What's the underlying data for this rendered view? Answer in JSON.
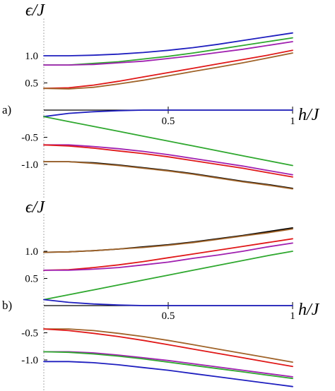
{
  "chart_data": [
    {
      "type": "line",
      "panel_label": "a)",
      "ylabel": "ϵ/J",
      "xlabel": "h/J",
      "xlim": [
        0,
        1
      ],
      "ylim": [
        -1.55,
        1.55
      ],
      "x_ticks": [
        "0.5",
        "1"
      ],
      "y_ticks": [
        "1.0",
        "0.5",
        "-0.5",
        "-1.0"
      ],
      "x": [
        0,
        0.1,
        0.2,
        0.3,
        0.4,
        0.5,
        0.6,
        0.7,
        0.8,
        0.9,
        1.0
      ],
      "series": [
        {
          "color": "#1f1fbf",
          "values": [
            1.0,
            1.0,
            1.01,
            1.03,
            1.06,
            1.1,
            1.15,
            1.21,
            1.28,
            1.35,
            1.42
          ]
        },
        {
          "color": "#2fa82f",
          "values": [
            0.83,
            0.83,
            0.86,
            0.89,
            0.94,
            0.99,
            1.05,
            1.12,
            1.19,
            1.26,
            1.33
          ]
        },
        {
          "color": "#a020b0",
          "values": [
            0.83,
            0.83,
            0.84,
            0.87,
            0.9,
            0.95,
            1.0,
            1.06,
            1.12,
            1.19,
            1.26
          ]
        },
        {
          "color": "#e01818",
          "values": [
            0.4,
            0.41,
            0.46,
            0.53,
            0.61,
            0.69,
            0.77,
            0.85,
            0.93,
            1.01,
            1.1
          ]
        },
        {
          "color": "#a0642a",
          "values": [
            0.4,
            0.39,
            0.42,
            0.48,
            0.55,
            0.63,
            0.71,
            0.79,
            0.87,
            0.96,
            1.05
          ]
        },
        {
          "color": "#1f1fbf",
          "values": [
            -0.12,
            -0.06,
            -0.03,
            -0.01,
            0.0,
            0.0,
            0.0,
            0.0,
            0.0,
            0.0,
            0.0
          ]
        },
        {
          "color": "#2fa82f",
          "values": [
            -0.12,
            -0.21,
            -0.3,
            -0.39,
            -0.48,
            -0.57,
            -0.66,
            -0.75,
            -0.84,
            -0.93,
            -1.02
          ]
        },
        {
          "color": "#a020b0",
          "values": [
            -0.64,
            -0.64,
            -0.67,
            -0.71,
            -0.76,
            -0.82,
            -0.89,
            -0.96,
            -1.03,
            -1.11,
            -1.19
          ]
        },
        {
          "color": "#e01818",
          "values": [
            -0.64,
            -0.66,
            -0.7,
            -0.75,
            -0.8,
            -0.86,
            -0.93,
            -1.0,
            -1.07,
            -1.15,
            -1.23
          ]
        },
        {
          "color": "#000000",
          "values": [
            -0.95,
            -0.95,
            -0.97,
            -1.01,
            -1.06,
            -1.11,
            -1.17,
            -1.24,
            -1.31,
            -1.37,
            -1.44
          ]
        },
        {
          "color": "#a0642a",
          "values": [
            -0.95,
            -0.95,
            -0.98,
            -1.02,
            -1.07,
            -1.12,
            -1.18,
            -1.25,
            -1.32,
            -1.38,
            -1.45
          ]
        }
      ]
    },
    {
      "type": "line",
      "panel_label": "b)",
      "ylabel": "ϵ/J",
      "xlabel": "h/J",
      "xlim": [
        0,
        1
      ],
      "ylim": [
        -1.55,
        1.55
      ],
      "x_ticks": [
        "0.5",
        "1"
      ],
      "y_ticks": [
        "1.0",
        "0.5",
        "-0.5",
        "-1.0"
      ],
      "x": [
        0,
        0.1,
        0.2,
        0.3,
        0.4,
        0.5,
        0.6,
        0.7,
        0.8,
        0.9,
        1.0
      ],
      "series": [
        {
          "color": "#000000",
          "values": [
            0.98,
            0.99,
            1.01,
            1.04,
            1.08,
            1.12,
            1.17,
            1.23,
            1.29,
            1.36,
            1.43
          ]
        },
        {
          "color": "#a0642a",
          "values": [
            0.98,
            0.99,
            1.01,
            1.04,
            1.07,
            1.11,
            1.16,
            1.22,
            1.28,
            1.34,
            1.41
          ]
        },
        {
          "color": "#e01818",
          "values": [
            0.65,
            0.66,
            0.7,
            0.75,
            0.81,
            0.88,
            0.95,
            1.02,
            1.09,
            1.16,
            1.23
          ]
        },
        {
          "color": "#a020b0",
          "values": [
            0.65,
            0.65,
            0.67,
            0.7,
            0.75,
            0.8,
            0.87,
            0.93,
            1.0,
            1.08,
            1.15
          ]
        },
        {
          "color": "#2fa82f",
          "values": [
            0.11,
            0.2,
            0.29,
            0.38,
            0.47,
            0.56,
            0.65,
            0.74,
            0.83,
            0.92,
            1.0
          ]
        },
        {
          "color": "#1f1fbf",
          "values": [
            0.11,
            0.06,
            0.03,
            0.01,
            0.0,
            0.0,
            0.0,
            0.0,
            0.0,
            0.0,
            0.0
          ]
        },
        {
          "color": "#a0642a",
          "values": [
            -0.43,
            -0.43,
            -0.46,
            -0.51,
            -0.57,
            -0.64,
            -0.72,
            -0.8,
            -0.88,
            -0.96,
            -1.04
          ]
        },
        {
          "color": "#e01818",
          "values": [
            -0.43,
            -0.46,
            -0.51,
            -0.57,
            -0.64,
            -0.72,
            -0.8,
            -0.88,
            -0.96,
            -1.04,
            -1.12
          ]
        },
        {
          "color": "#a020b0",
          "values": [
            -0.85,
            -0.85,
            -0.87,
            -0.91,
            -0.96,
            -1.01,
            -1.07,
            -1.13,
            -1.19,
            -1.25,
            -1.31
          ]
        },
        {
          "color": "#2fa82f",
          "values": [
            -0.85,
            -0.86,
            -0.89,
            -0.93,
            -0.98,
            -1.04,
            -1.1,
            -1.16,
            -1.22,
            -1.28,
            -1.34
          ]
        },
        {
          "color": "#1f1fbf",
          "values": [
            -1.03,
            -1.03,
            -1.05,
            -1.09,
            -1.14,
            -1.19,
            -1.25,
            -1.31,
            -1.37,
            -1.43,
            -1.49
          ]
        }
      ]
    }
  ]
}
